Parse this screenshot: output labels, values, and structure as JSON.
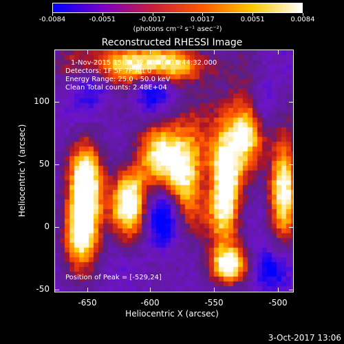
{
  "colorbar": {
    "tick_labels": [
      "-0.0084",
      "-0.0051",
      "-0.0017",
      "0.0017",
      "0.0051",
      "0.0084"
    ],
    "units": "(photons cm⁻² s⁻¹ asec⁻²)",
    "colors": [
      "#0000ff",
      "#7a00c8",
      "#c81e3c",
      "#ff5a00",
      "#ffc800",
      "#ffffff"
    ]
  },
  "plot": {
    "title": "Reconstructed RHESSI Image",
    "annotation_lines": [
      "1-Nov-2015 15:34:32.000 to 15:44:32.000",
      "Detectors: 1F 5F 7F  Att 0",
      "Energy Range: 25.0 - 50.0 keV",
      "Clean   Total counts: 2.48E+04"
    ],
    "peak_text": "Position of Peak = [-529,24]",
    "xlabel": "Heliocentric X (arcsec)",
    "ylabel": "Heliocentric Y (arcsec)",
    "xticks": [
      "-650",
      "-600",
      "-550",
      "-500"
    ],
    "yticks": [
      "100",
      "50",
      "0",
      "-50"
    ],
    "xlim": [
      -675,
      -485
    ],
    "ylim": [
      -52,
      135
    ]
  },
  "footer": {
    "date": "3-Oct-2017 13:06"
  }
}
